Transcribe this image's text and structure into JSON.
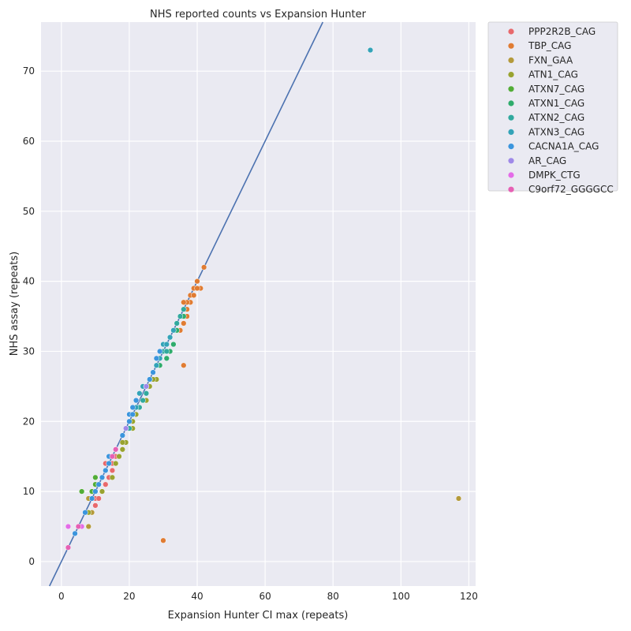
{
  "chart_data": {
    "type": "scatter",
    "title": "NHS reported counts vs Expansion Hunter",
    "xlabel": "Expansion Hunter CI max (repeats)",
    "ylabel": "NHS assay (repeats)",
    "xlim": [
      -6,
      122
    ],
    "ylim": [
      -3.5,
      77
    ],
    "xticks": [
      0,
      20,
      40,
      60,
      80,
      100,
      120
    ],
    "yticks": [
      0,
      10,
      20,
      30,
      40,
      50,
      60,
      70
    ],
    "grid": true,
    "legend_position": "outside-top-right",
    "identity_line": {
      "color": "#4c72b0",
      "slope": 1,
      "intercept": 0
    },
    "series": [
      {
        "name": "PPP2R2B_CAG",
        "color": "#e8696c",
        "points": [
          [
            10,
            9
          ],
          [
            10,
            8
          ],
          [
            11,
            9
          ],
          [
            13,
            11
          ],
          [
            14,
            12
          ],
          [
            15,
            13
          ],
          [
            16,
            15
          ],
          [
            16,
            16
          ],
          [
            15,
            14
          ],
          [
            13,
            14
          ]
        ]
      },
      {
        "name": "TBP_CAG",
        "color": "#e07c33",
        "points": [
          [
            30,
            3
          ],
          [
            36,
            28
          ],
          [
            35,
            33
          ],
          [
            36,
            34
          ],
          [
            37,
            35
          ],
          [
            37,
            36
          ],
          [
            38,
            37
          ],
          [
            38,
            38
          ],
          [
            37,
            37
          ],
          [
            39,
            38
          ],
          [
            39,
            39
          ],
          [
            40,
            40
          ],
          [
            41,
            39
          ],
          [
            42,
            42
          ],
          [
            40,
            39
          ],
          [
            36,
            37
          ]
        ]
      },
      {
        "name": "FXN_GAA",
        "color": "#b49a3b",
        "points": [
          [
            117,
            9
          ],
          [
            8,
            5
          ],
          [
            6,
            5
          ],
          [
            9,
            7
          ],
          [
            8,
            9
          ]
        ]
      },
      {
        "name": "ATN1_CAG",
        "color": "#99a330",
        "points": [
          [
            8,
            7
          ],
          [
            10,
            11
          ],
          [
            12,
            10
          ],
          [
            15,
            12
          ],
          [
            16,
            14
          ],
          [
            17,
            15
          ],
          [
            18,
            16
          ],
          [
            19,
            17
          ],
          [
            20,
            19
          ],
          [
            21,
            20
          ],
          [
            22,
            21
          ],
          [
            23,
            22
          ],
          [
            24,
            23
          ],
          [
            25,
            23
          ],
          [
            21,
            19
          ],
          [
            28,
            26
          ],
          [
            18,
            17
          ],
          [
            26,
            25
          ],
          [
            27,
            26
          ]
        ]
      },
      {
        "name": "ATXN7_CAG",
        "color": "#52ad37",
        "points": [
          [
            6,
            10
          ],
          [
            10,
            12
          ],
          [
            10,
            11
          ],
          [
            9,
            10
          ],
          [
            11,
            11
          ]
        ]
      },
      {
        "name": "ATXN1_CAG",
        "color": "#2fac6c",
        "points": [
          [
            27,
            27
          ],
          [
            29,
            28
          ],
          [
            31,
            29
          ],
          [
            31,
            31
          ],
          [
            32,
            30
          ],
          [
            33,
            31
          ],
          [
            34,
            33
          ],
          [
            35,
            35
          ],
          [
            36,
            35
          ],
          [
            30,
            30
          ],
          [
            29,
            29
          ],
          [
            28,
            28
          ]
        ]
      },
      {
        "name": "ATXN2_CAG",
        "color": "#31a99e",
        "points": [
          [
            18,
            18
          ],
          [
            19,
            19
          ],
          [
            20,
            19
          ],
          [
            21,
            21
          ],
          [
            22,
            22
          ],
          [
            23,
            22
          ],
          [
            24,
            23
          ],
          [
            25,
            24
          ],
          [
            26,
            26
          ],
          [
            27,
            27
          ],
          [
            28,
            28
          ],
          [
            29,
            29
          ],
          [
            30,
            30
          ],
          [
            31,
            30
          ],
          [
            32,
            32
          ],
          [
            33,
            33
          ],
          [
            34,
            34
          ],
          [
            35,
            35
          ],
          [
            36,
            36
          ]
        ]
      },
      {
        "name": "ATXN3_CAG",
        "color": "#33a3b8",
        "points": [
          [
            91,
            73
          ],
          [
            22,
            23
          ],
          [
            23,
            24
          ],
          [
            24,
            25
          ],
          [
            25,
            25
          ],
          [
            26,
            26
          ],
          [
            27,
            27
          ],
          [
            28,
            28
          ],
          [
            29,
            29
          ],
          [
            30,
            31
          ],
          [
            31,
            31
          ],
          [
            32,
            32
          ],
          [
            33,
            33
          ],
          [
            22,
            22
          ]
        ]
      },
      {
        "name": "CACNA1A_CAG",
        "color": "#3b95dd",
        "points": [
          [
            4,
            4
          ],
          [
            7,
            7
          ],
          [
            9,
            9
          ],
          [
            10,
            10
          ],
          [
            11,
            11
          ],
          [
            12,
            12
          ],
          [
            13,
            13
          ],
          [
            14,
            14
          ],
          [
            14,
            15
          ],
          [
            18,
            18
          ],
          [
            19,
            19
          ],
          [
            20,
            20
          ],
          [
            20,
            21
          ],
          [
            21,
            22
          ],
          [
            22,
            23
          ],
          [
            26,
            26
          ],
          [
            27,
            27
          ],
          [
            28,
            29
          ],
          [
            29,
            30
          ],
          [
            21,
            21
          ],
          [
            12,
            12
          ],
          [
            13,
            13
          ]
        ]
      },
      {
        "name": "AR_CAG",
        "color": "#9f89e8",
        "points": [
          [
            25,
            25
          ],
          [
            16,
            16
          ],
          [
            19,
            19
          ]
        ]
      },
      {
        "name": "DMPK_CTG",
        "color": "#e46ce8",
        "points": [
          [
            5,
            5
          ],
          [
            2,
            5
          ],
          [
            6,
            5
          ],
          [
            16,
            16
          ]
        ]
      },
      {
        "name": "C9orf72_GGGGCC",
        "color": "#e660b4",
        "points": [
          [
            2,
            2
          ],
          [
            5,
            5
          ],
          [
            15,
            15
          ],
          [
            16,
            16
          ]
        ]
      }
    ]
  }
}
